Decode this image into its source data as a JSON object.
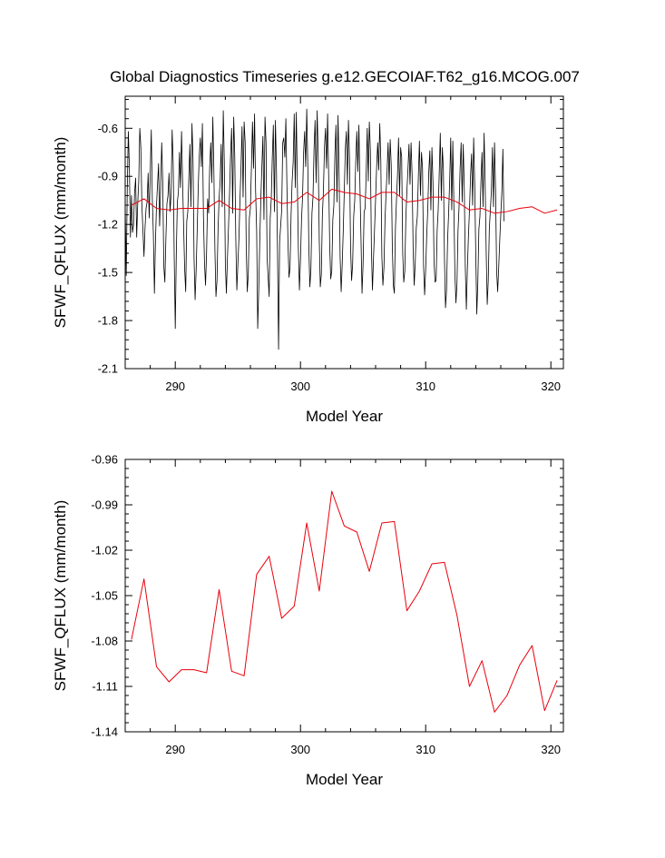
{
  "title": "Global Diagnostics Timeseries g.e12.GECOIAF.T62_g16.MCOG.007",
  "chart_data": [
    {
      "type": "line",
      "xlabel": "Model Year",
      "ylabel": "SFWF_QFLUX (mm/month)",
      "xlim": [
        286.0,
        321.0
      ],
      "ylim": [
        -2.1,
        -0.4
      ],
      "xticks": [
        290,
        300,
        310,
        320
      ],
      "xtick_labels": [
        "290",
        "300",
        "310",
        "320"
      ],
      "yticks": [
        -2.1,
        -1.8,
        -1.5,
        -1.2,
        -0.9,
        -0.6
      ],
      "ytick_labels": [
        "-2.1",
        "-1.8",
        "-1.5",
        "-1.2",
        "-0.9",
        "-0.6"
      ],
      "series": [
        {
          "kind": "monthly",
          "color": "#000000",
          "start_year": 286.0,
          "step_years": 0.0833333,
          "values": [
            -1.07,
            -1.52,
            -0.97,
            -0.62,
            -0.84,
            -1.28,
            -1.02,
            -1.25,
            -1.2,
            -1.0,
            -0.91,
            -1.28,
            -1.07,
            -0.93,
            -0.6,
            -0.72,
            -1.08,
            -1.24,
            -1.4,
            -1.22,
            -1.1,
            -1.06,
            -0.88,
            -1.16,
            -0.88,
            -0.61,
            -1.04,
            -1.26,
            -1.63,
            -1.31,
            -1.08,
            -0.95,
            -0.82,
            -1.21,
            -0.97,
            -0.69,
            -0.94,
            -1.46,
            -1.56,
            -1.29,
            -1.07,
            -1.02,
            -0.88,
            -1.12,
            -1.01,
            -0.61,
            -0.82,
            -1.41,
            -1.85,
            -1.38,
            -1.06,
            -1.0,
            -0.75,
            -0.97,
            -0.62,
            -0.93,
            -1.21,
            -1.48,
            -1.62,
            -1.18,
            -1.12,
            -0.91,
            -0.7,
            -1.09,
            -0.57,
            -0.79,
            -1.41,
            -1.67,
            -1.49,
            -1.24,
            -0.97,
            -0.77,
            -0.66,
            -0.84,
            -0.57,
            -1.15,
            -1.44,
            -1.58,
            -1.38,
            -1.04,
            -1.13,
            -0.84,
            -0.69,
            -0.94,
            -0.53,
            -0.87,
            -1.36,
            -1.65,
            -1.55,
            -1.23,
            -1.04,
            -0.93,
            -0.7,
            -1.09,
            -0.49,
            -0.81,
            -1.45,
            -1.63,
            -1.41,
            -1.22,
            -1.01,
            -0.77,
            -0.6,
            -1.13,
            -0.53,
            -0.77,
            -1.29,
            -1.61,
            -1.45,
            -1.29,
            -1.05,
            -0.84,
            -0.59,
            -1.03,
            -0.56,
            -0.69,
            -1.34,
            -1.62,
            -1.51,
            -1.16,
            -1.1,
            -0.84,
            -0.56,
            -0.85,
            -0.51,
            -0.99,
            -1.24,
            -1.85,
            -1.61,
            -1.3,
            -1.04,
            -0.84,
            -0.65,
            -1.17,
            -0.53,
            -0.69,
            -1.41,
            -1.53,
            -1.65,
            -1.16,
            -1.04,
            -0.78,
            -0.58,
            -1.12,
            -0.55,
            -0.87,
            -1.38,
            -1.98,
            -1.31,
            -1.21,
            -1.11,
            -0.69,
            -0.66,
            -0.78,
            -0.54,
            -0.96,
            -1.31,
            -1.53,
            -1.47,
            -1.14,
            -0.93,
            -0.81,
            -0.51,
            -0.97,
            -0.5,
            -0.94,
            -1.36,
            -1.61,
            -1.42,
            -1.17,
            -1.03,
            -0.75,
            -0.62,
            -0.84,
            -0.48,
            -0.82,
            -1.34,
            -1.59,
            -1.48,
            -1.13,
            -1.03,
            -0.73,
            -0.55,
            -0.94,
            -0.49,
            -0.78,
            -1.29,
            -1.59,
            -1.51,
            -1.14,
            -0.99,
            -0.72,
            -0.6,
            -0.85,
            -0.51,
            -0.89,
            -1.33,
            -1.54,
            -1.49,
            -1.17,
            -1.08,
            -0.76,
            -0.58,
            -1.06,
            -0.52,
            -0.88,
            -1.4,
            -1.62,
            -1.45,
            -1.24,
            -0.99,
            -0.73,
            -0.62,
            -0.95,
            -0.55,
            -0.79,
            -1.34,
            -1.55,
            -1.45,
            -1.15,
            -1.05,
            -0.8,
            -0.62,
            -0.87,
            -0.58,
            -0.96,
            -1.29,
            -1.63,
            -1.45,
            -1.12,
            -1.1,
            -0.88,
            -0.6,
            -0.93,
            -0.56,
            -0.74,
            -1.36,
            -1.61,
            -1.41,
            -1.23,
            -1.04,
            -0.84,
            -0.69,
            -0.86,
            -0.57,
            -0.8,
            -1.4,
            -1.58,
            -1.47,
            -1.18,
            -1.01,
            -0.87,
            -0.69,
            -0.95,
            -0.67,
            -0.83,
            -1.33,
            -1.58,
            -1.63,
            -1.23,
            -1.05,
            -0.89,
            -0.66,
            -1.02,
            -0.72,
            -0.78,
            -1.38,
            -1.56,
            -1.49,
            -1.16,
            -0.99,
            -0.86,
            -0.7,
            -0.95,
            -0.69,
            -0.89,
            -1.36,
            -1.58,
            -1.44,
            -1.22,
            -1.15,
            -0.9,
            -0.68,
            -1.02,
            -0.75,
            -0.85,
            -1.46,
            -1.64,
            -1.48,
            -1.27,
            -1.11,
            -0.87,
            -0.74,
            -1.11,
            -0.72,
            -0.94,
            -1.43,
            -1.56,
            -1.55,
            -1.24,
            -1.11,
            -0.88,
            -0.63,
            -1.05,
            -0.72,
            -0.86,
            -1.41,
            -1.72,
            -1.61,
            -1.3,
            -1.13,
            -0.93,
            -0.66,
            -1.11,
            -0.68,
            -1.07,
            -1.5,
            -1.69,
            -1.57,
            -1.24,
            -1.09,
            -0.85,
            -0.69,
            -1.06,
            -0.7,
            -0.97,
            -1.47,
            -1.73,
            -1.47,
            -1.27,
            -1.11,
            -0.9,
            -0.76,
            -1.08,
            -0.66,
            -0.95,
            -1.38,
            -1.76,
            -1.56,
            -1.23,
            -1.15,
            -0.93,
            -0.75,
            -1.09,
            -0.63,
            -0.94,
            -1.37,
            -1.7,
            -1.55,
            -1.23,
            -1.11,
            -0.99,
            -0.72,
            -1.09,
            -0.69,
            -0.99,
            -1.49,
            -1.62,
            -1.47,
            -1.3,
            -1.14,
            -1.0,
            -0.73,
            -1.18
          ]
        },
        {
          "kind": "annual",
          "color": "#e8000b",
          "x": [
            286.5,
            287.5,
            288.5,
            289.5,
            290.5,
            291.5,
            292.5,
            293.5,
            294.5,
            295.5,
            296.5,
            297.5,
            298.5,
            299.5,
            300.5,
            301.5,
            302.5,
            303.5,
            304.5,
            305.5,
            306.5,
            307.5,
            308.5,
            309.5,
            310.5,
            311.5,
            312.5,
            313.5,
            314.5,
            315.5,
            316.5,
            317.5,
            318.5,
            319.5,
            320.5
          ],
          "y": [
            -1.08,
            -1.04,
            -1.1,
            -1.11,
            -1.1,
            -1.1,
            -1.1,
            -1.05,
            -1.1,
            -1.11,
            -1.04,
            -1.03,
            -1.07,
            -1.06,
            -1.0,
            -1.05,
            -0.98,
            -1.0,
            -1.01,
            -1.04,
            -1.0,
            -1.0,
            -1.06,
            -1.05,
            -1.03,
            -1.03,
            -1.06,
            -1.11,
            -1.1,
            -1.13,
            -1.12,
            -1.1,
            -1.09,
            -1.13,
            -1.11
          ]
        }
      ]
    },
    {
      "type": "line",
      "xlabel": "Model Year",
      "ylabel": "SFWF_QFLUX (mm/month)",
      "xlim": [
        286.0,
        321.0
      ],
      "ylim": [
        -1.14,
        -0.96
      ],
      "xticks": [
        290,
        300,
        310,
        320
      ],
      "xtick_labels": [
        "290",
        "300",
        "310",
        "320"
      ],
      "yticks": [
        -1.14,
        -1.11,
        -1.08,
        -1.05,
        -1.02,
        -0.99,
        -0.96
      ],
      "ytick_labels": [
        "-1.14",
        "-1.11",
        "-1.08",
        "-1.05",
        "-1.02",
        "-0.99",
        "-0.96"
      ],
      "series": [
        {
          "kind": "annual",
          "color": "#e8000b",
          "x": [
            286.5,
            287.5,
            288.5,
            289.5,
            290.5,
            291.5,
            292.5,
            293.5,
            294.5,
            295.5,
            296.5,
            297.5,
            298.5,
            299.5,
            300.5,
            301.5,
            302.5,
            303.5,
            304.5,
            305.5,
            306.5,
            307.5,
            308.5,
            309.5,
            310.5,
            311.5,
            312.5,
            313.5,
            314.5,
            315.5,
            316.5,
            317.5,
            318.5,
            319.5,
            320.5
          ],
          "y": [
            -1.079,
            -1.039,
            -1.097,
            -1.107,
            -1.099,
            -1.099,
            -1.101,
            -1.046,
            -1.1,
            -1.103,
            -1.036,
            -1.024,
            -1.065,
            -1.057,
            -1.002,
            -1.047,
            -0.981,
            -1.004,
            -1.008,
            -1.034,
            -1.002,
            -1.001,
            -1.06,
            -1.047,
            -1.029,
            -1.028,
            -1.063,
            -1.11,
            -1.093,
            -1.127,
            -1.116,
            -1.096,
            -1.083,
            -1.126,
            -1.106
          ]
        }
      ]
    }
  ]
}
